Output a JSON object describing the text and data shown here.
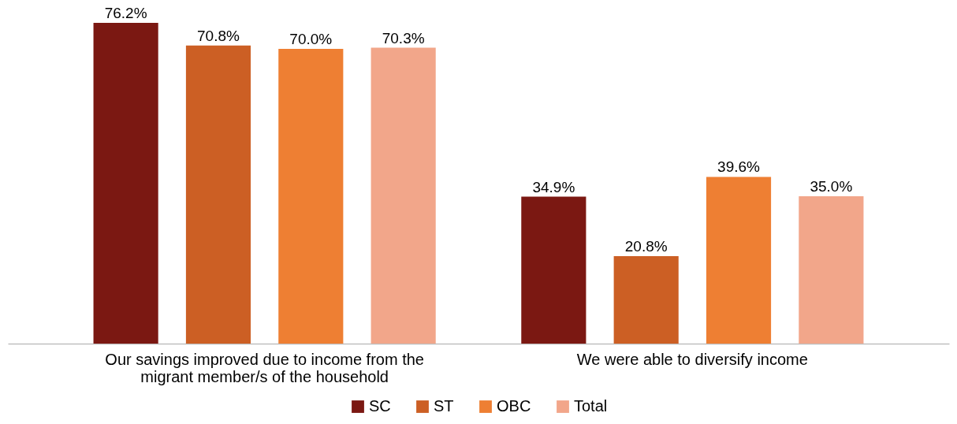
{
  "chart_data": {
    "type": "bar",
    "categories": [
      "Our savings improved due to income from the migrant member/s of the household",
      "We were able to diversify income"
    ],
    "series": [
      {
        "name": "SC",
        "color": "#7b1812",
        "values": [
          76.2,
          34.9
        ],
        "value_labels": [
          "76.2%",
          "34.9%"
        ]
      },
      {
        "name": "ST",
        "color": "#cc5f24",
        "values": [
          70.8,
          20.8
        ],
        "value_labels": [
          "70.8%",
          "20.8%"
        ]
      },
      {
        "name": "OBC",
        "color": "#ee7f33",
        "values": [
          70.0,
          39.6
        ],
        "value_labels": [
          "70.0%",
          "39.6%"
        ]
      },
      {
        "name": "Total",
        "color": "#f2a68a",
        "values": [
          70.3,
          35.0
        ],
        "value_labels": [
          "70.3%",
          "35.0%"
        ]
      }
    ],
    "legend": "bottom"
  }
}
